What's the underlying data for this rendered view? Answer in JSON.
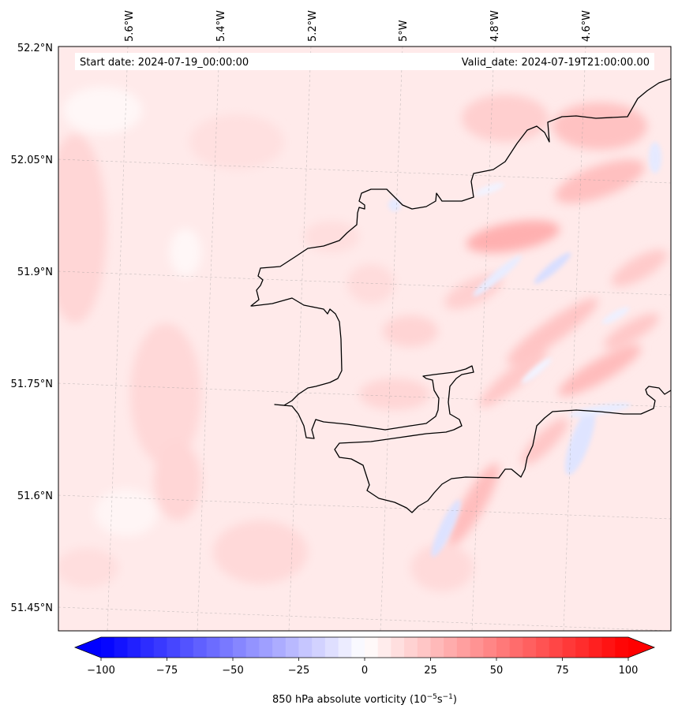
{
  "map": {
    "start_date_label": "Start date: 2024-07-19_00:00:00",
    "valid_date_label": "Valid_date: 2024-07-19T21:00:00.00",
    "lon_labels": [
      "5.6°W",
      "5.4°W",
      "5.2°W",
      "5°W",
      "4.8°W",
      "4.6°W"
    ],
    "lat_labels": [
      "52.2°N",
      "52.05°N",
      "51.9°N",
      "51.75°N",
      "51.6°N",
      "51.45°N"
    ],
    "lon_extent": [
      -5.75,
      -4.4
    ],
    "lat_extent": [
      51.42,
      52.2
    ],
    "gridlines": true,
    "coastline_color": "#000000"
  },
  "colorbar": {
    "ticks": [
      "−100",
      "−75",
      "−50",
      "−25",
      "0",
      "25",
      "50",
      "75",
      "100"
    ],
    "tick_values": [
      -100,
      -75,
      -50,
      -25,
      0,
      25,
      50,
      75,
      100
    ],
    "range": [
      -100,
      100
    ],
    "extend": "both",
    "negative_color": "#0000ff",
    "positive_color": "#ff0000",
    "title_prefix": "850 hPa absolute vorticity (10",
    "title_exp1": "−5",
    "title_mid": "s",
    "title_exp2": "−1",
    "title_suffix": ")"
  }
}
